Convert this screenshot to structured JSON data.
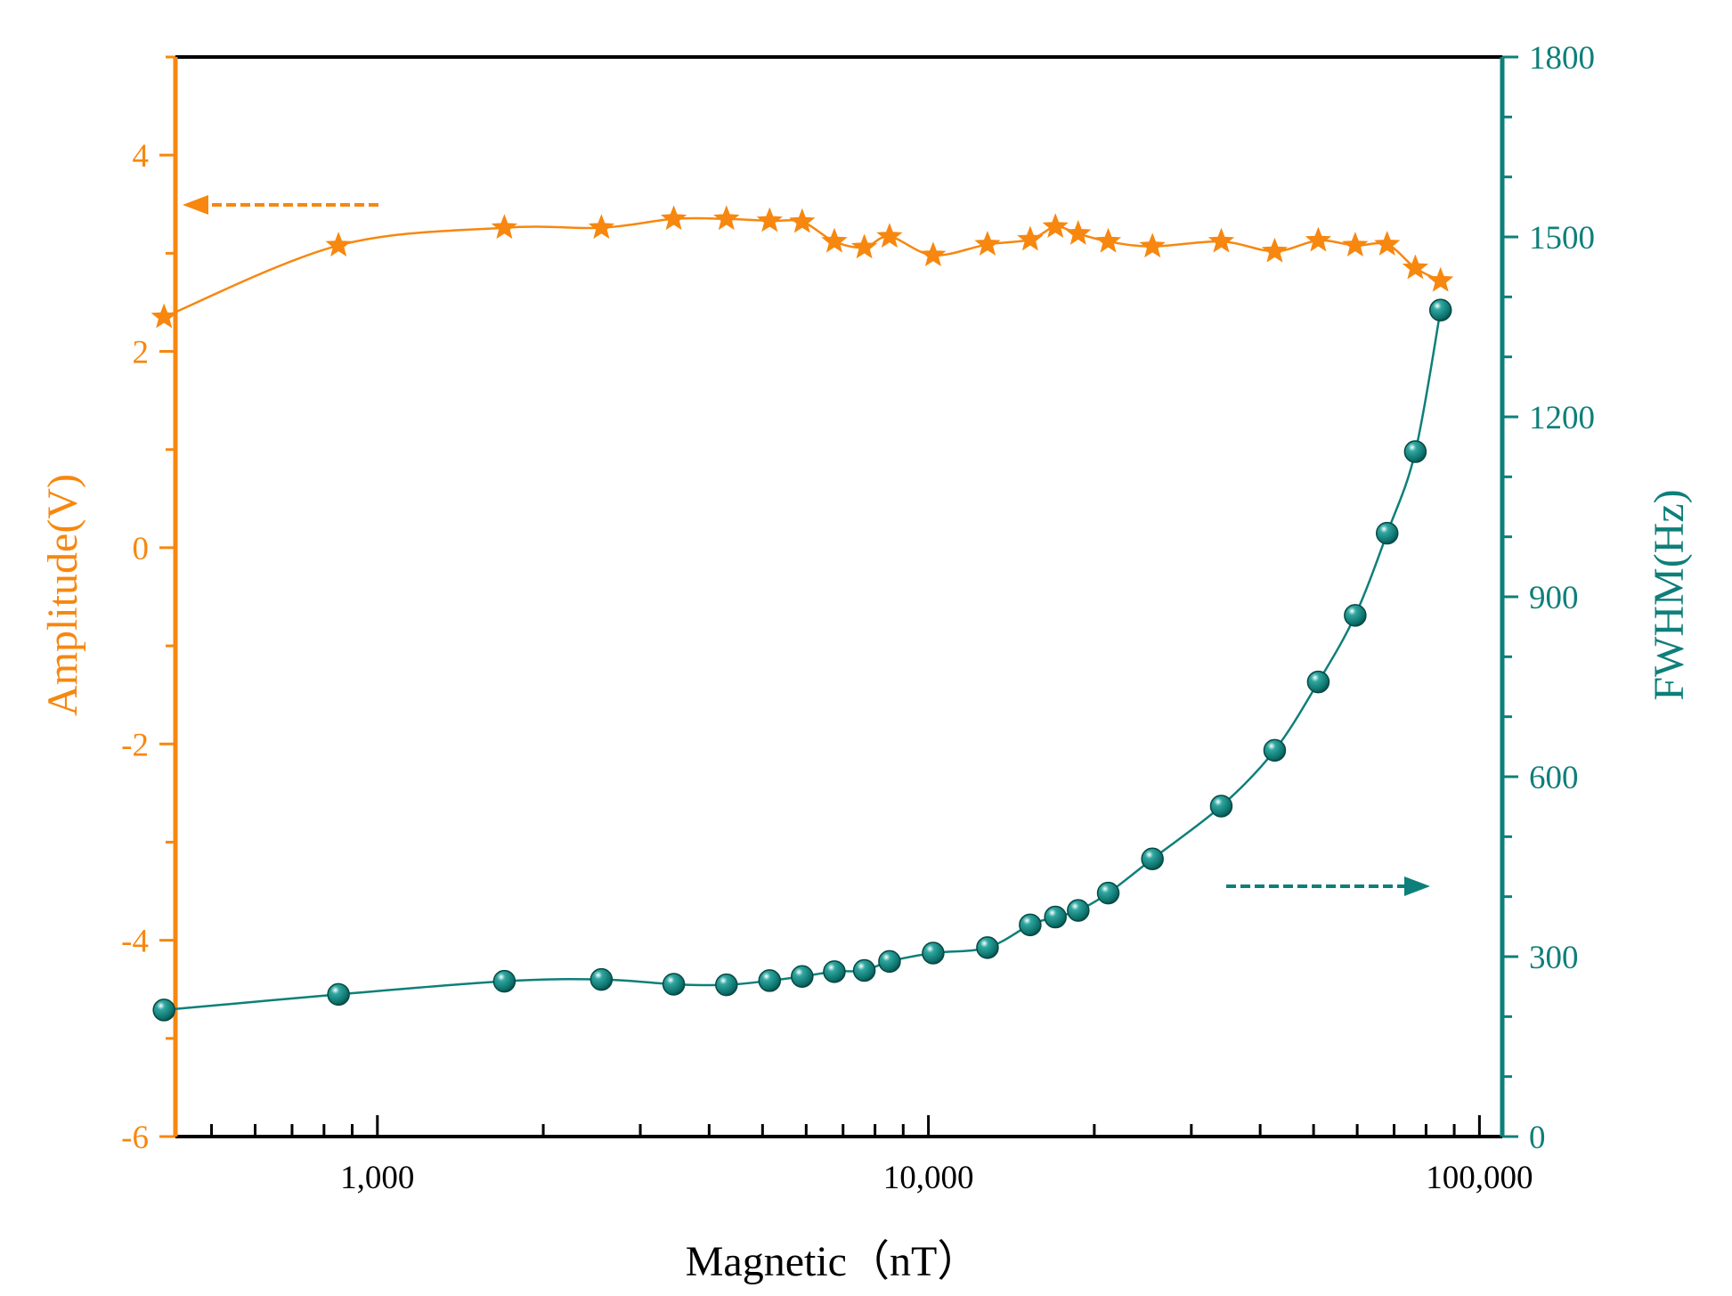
{
  "chart_data": {
    "type": "line",
    "title": "",
    "xlabel": "Magnetic（nT）",
    "xscale": "log",
    "xlim": [
      430,
      110000
    ],
    "xticks": [
      1000,
      10000,
      100000
    ],
    "xtick_labels": [
      "1,000",
      "10,000",
      "100,000"
    ],
    "y_left": {
      "label": "Amplitude(V)",
      "ylim": [
        -6,
        5
      ],
      "ticks": [
        -6,
        -4,
        -2,
        0,
        2,
        4
      ],
      "tick_labels": [
        "-6",
        "-4",
        "-2",
        "0",
        "2",
        "4"
      ],
      "color": "#F7870F"
    },
    "y_right": {
      "label": "FWHM(Hz)",
      "ylim": [
        0,
        1800
      ],
      "ticks": [
        0,
        300,
        600,
        900,
        1200,
        1500,
        1800
      ],
      "tick_labels": [
        "0",
        "300",
        "600",
        "900",
        "1200",
        "1500",
        "1800"
      ],
      "color": "#0E7F7A"
    },
    "x": [
      410,
      850,
      1700,
      2550,
      3450,
      4300,
      5150,
      5900,
      6750,
      7650,
      8500,
      10200,
      12800,
      15300,
      17000,
      18700,
      21200,
      25500,
      34000,
      42500,
      51000,
      59500,
      68000,
      76500,
      85000
    ],
    "series": [
      {
        "name": "Amplitude",
        "axis": "left",
        "marker": "star",
        "color": "#F7870F",
        "values": [
          2.35,
          3.08,
          3.26,
          3.26,
          3.35,
          3.35,
          3.33,
          3.32,
          3.12,
          3.06,
          3.17,
          2.98,
          3.09,
          3.14,
          3.27,
          3.2,
          3.12,
          3.07,
          3.12,
          3.02,
          3.13,
          3.08,
          3.09,
          2.85,
          2.72
        ]
      },
      {
        "name": "FWHM",
        "axis": "right",
        "marker": "sphere",
        "color": "#0E7F7A",
        "values": [
          211,
          237,
          259,
          262,
          254,
          253,
          260,
          267,
          275,
          277,
          292,
          306,
          315,
          353,
          366,
          377,
          406,
          463,
          551,
          644,
          758,
          869,
          1006,
          1142,
          1378
        ]
      }
    ],
    "annotations": [
      {
        "type": "arrow",
        "direction": "left",
        "points_to": "left axis (Amplitude)"
      },
      {
        "type": "arrow",
        "direction": "right",
        "points_to": "right axis (FWHM)"
      }
    ]
  }
}
